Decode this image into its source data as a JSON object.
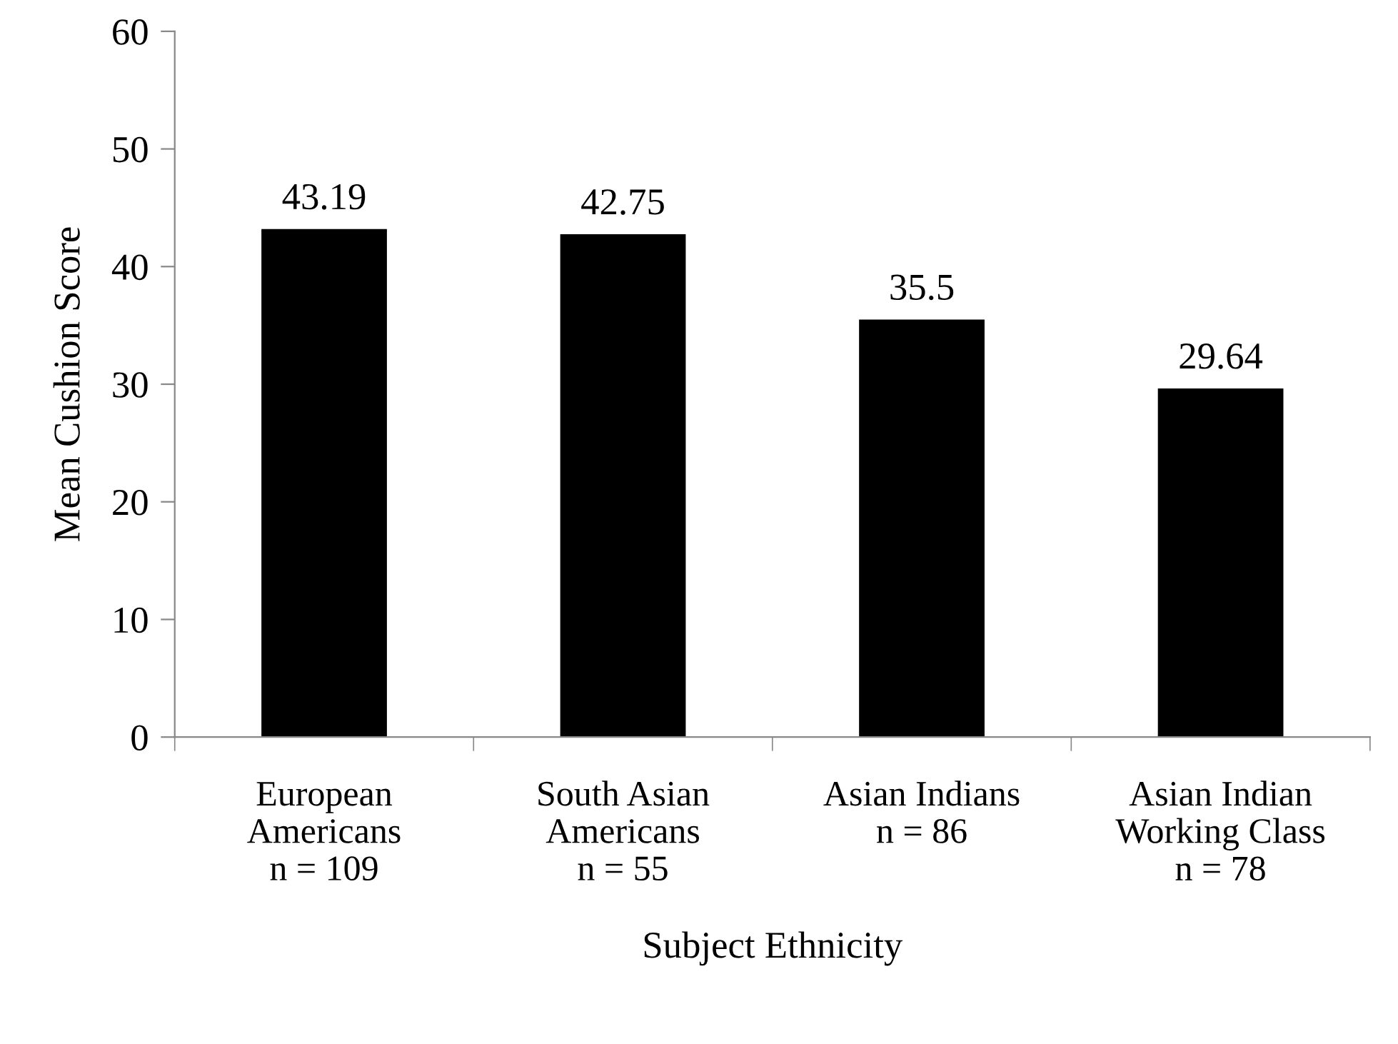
{
  "chart_data": {
    "type": "bar",
    "xlabel": "Subject Ethnicity",
    "ylabel": "Mean Cushion Score",
    "categories": [
      "European\nAmericans\nn = 109",
      "South Asian\nAmericans\nn = 55",
      "Asian Indians\nn = 86",
      "Asian Indian\nWorking Class\nn = 78"
    ],
    "values": [
      43.19,
      42.75,
      35.5,
      29.64
    ],
    "color": "#000000",
    "ylim": [
      0,
      60
    ],
    "yticks": [
      0,
      10,
      20,
      30,
      40,
      50,
      60
    ],
    "grid": false,
    "legend": false,
    "data_labels": true
  }
}
